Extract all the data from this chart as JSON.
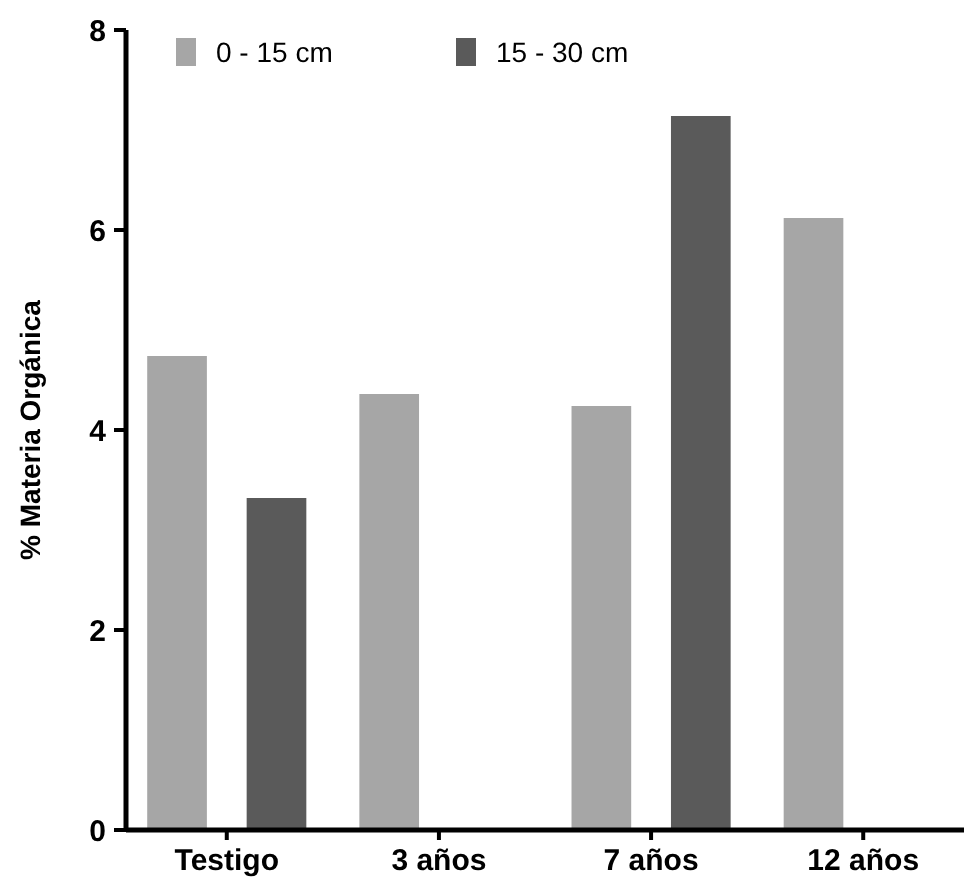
{
  "chart_data": {
    "type": "bar",
    "ylabel": "% Materia Orgánica",
    "categories": [
      "Testigo",
      "3 años",
      "7 años",
      "12 años"
    ],
    "series": [
      {
        "name": "0 - 15 cm",
        "color": "#a6a6a6",
        "values": [
          4.74,
          4.36,
          4.24,
          6.12
        ]
      },
      {
        "name": "15 - 30 cm",
        "color": "#5a5a5a",
        "values": [
          3.32,
          null,
          7.14,
          null
        ]
      }
    ],
    "ylim": [
      0,
      8
    ],
    "yticks": [
      0,
      2,
      4,
      6,
      8
    ],
    "grid": false,
    "legend": "top left"
  }
}
